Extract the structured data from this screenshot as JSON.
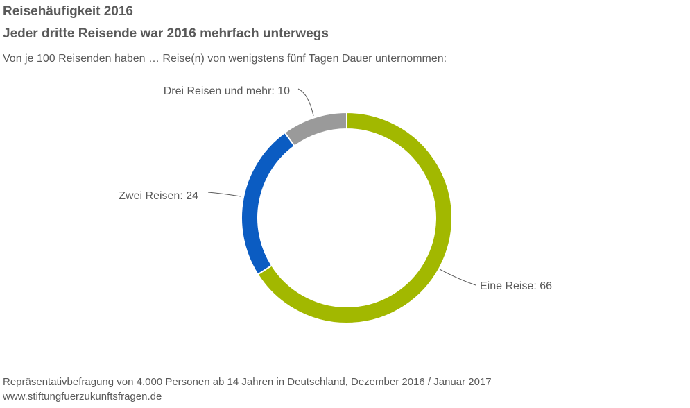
{
  "header": {
    "title_line1": "Reisehäufigkeit 2016",
    "title_line2": "Jeder dritte Reisende war 2016 mehrfach unterwegs",
    "subtitle": "Von je 100 Reisenden haben … Reise(n) von wenigstens fünf Tagen Dauer unternommen:"
  },
  "chart_data": {
    "type": "pie",
    "variant": "donut",
    "title": "Reisehäufigkeit 2016",
    "categories": [
      "Eine Reise",
      "Zwei Reisen",
      "Drei Reisen und mehr"
    ],
    "values": [
      66,
      24,
      10
    ],
    "labels": [
      "Eine Reise: 66",
      "Zwei Reisen: 24",
      "Drei Reisen und mehr: 10"
    ],
    "colors": [
      "#a2b800",
      "#0b5cc2",
      "#9a9a9a"
    ],
    "start": "top",
    "direction": "clockwise"
  },
  "footer": {
    "source": "Repräsentativbefragung von 4.000 Personen ab 14 Jahren in Deutschland, Dezember 2016 / Januar 2017",
    "website": "www.stiftungfuerzukunftsfragen.de"
  }
}
